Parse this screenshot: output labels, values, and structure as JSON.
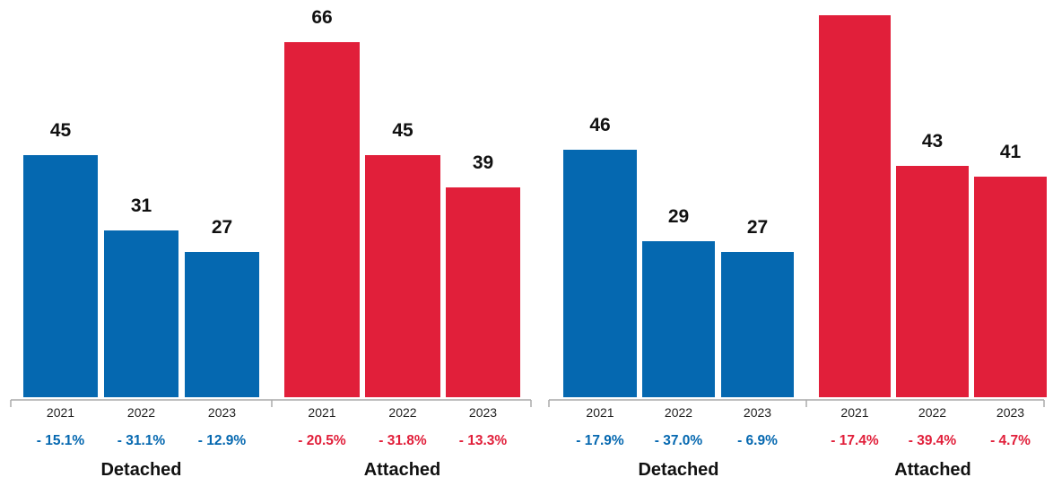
{
  "colors": {
    "detached": "#0568b0",
    "attached": "#e11f3a",
    "axis": "#aaaaaa"
  },
  "chart_data": [
    {
      "type": "bar",
      "title": "",
      "years": [
        "2021",
        "2022",
        "2023"
      ],
      "ylim": [
        0,
        80
      ],
      "grid": false,
      "groups": [
        {
          "name": "Detached",
          "color_key": "detached",
          "values": [
            45,
            31,
            27
          ],
          "changes": [
            "- 15.1%",
            "- 31.1%",
            "- 12.9%"
          ]
        },
        {
          "name": "Attached",
          "color_key": "attached",
          "values": [
            66,
            45,
            39
          ],
          "changes": [
            "- 20.5%",
            "- 31.8%",
            "- 13.3%"
          ]
        }
      ]
    },
    {
      "type": "bar",
      "title": "",
      "years": [
        "2021",
        "2022",
        "2023"
      ],
      "ylim": [
        0,
        80
      ],
      "grid": false,
      "groups": [
        {
          "name": "Detached",
          "color_key": "detached",
          "values": [
            46,
            29,
            27
          ],
          "changes": [
            "- 17.9%",
            "- 37.0%",
            "- 6.9%"
          ]
        },
        {
          "name": "Attached",
          "color_key": "attached",
          "values": [
            71,
            43,
            41
          ],
          "changes": [
            "- 17.4%",
            "- 39.4%",
            "- 4.7%"
          ]
        }
      ]
    }
  ]
}
